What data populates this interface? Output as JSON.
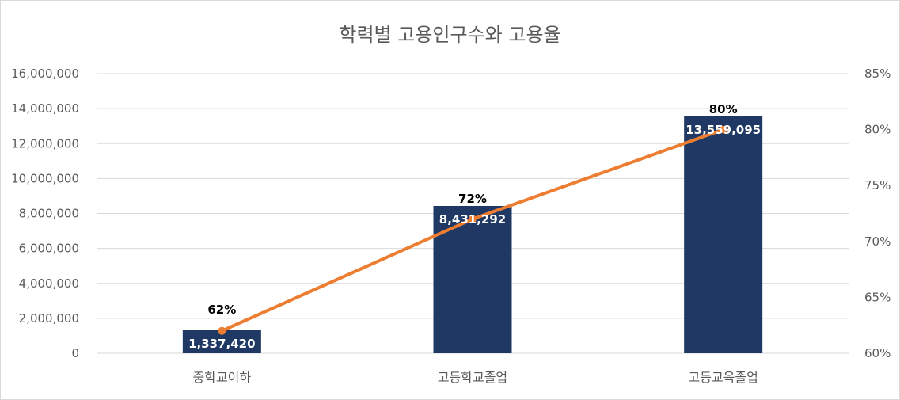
{
  "chart_data": {
    "type": "bar+line",
    "title": "학력별 고용인구수와 고용율",
    "categories": [
      "중학교이하",
      "고등학교졸업",
      "고등교육졸업"
    ],
    "series": [
      {
        "kind": "bar",
        "axis": "left",
        "values": [
          1337420,
          8431292,
          13559095
        ],
        "value_labels": [
          "1,337,420",
          "8,431,292",
          "13,559,095"
        ]
      },
      {
        "kind": "line",
        "axis": "right",
        "values": [
          62,
          72,
          80
        ],
        "value_labels": [
          "62%",
          "72%",
          "80%"
        ]
      }
    ],
    "y_left": {
      "min": 0,
      "max": 16000000,
      "step": 2000000,
      "ticks": [
        "0",
        "2,000,000",
        "4,000,000",
        "6,000,000",
        "8,000,000",
        "10,000,000",
        "12,000,000",
        "14,000,000",
        "16,000,000"
      ]
    },
    "y_right": {
      "min": 60,
      "max": 85,
      "step": 5,
      "ticks": [
        "60%",
        "65%",
        "70%",
        "75%",
        "80%",
        "85%"
      ]
    },
    "grid": true,
    "legend": "none",
    "colors": {
      "bar": "#1f3864",
      "line": "#ed7d31",
      "grid": "#d9d9d9",
      "text": "#595959"
    }
  }
}
